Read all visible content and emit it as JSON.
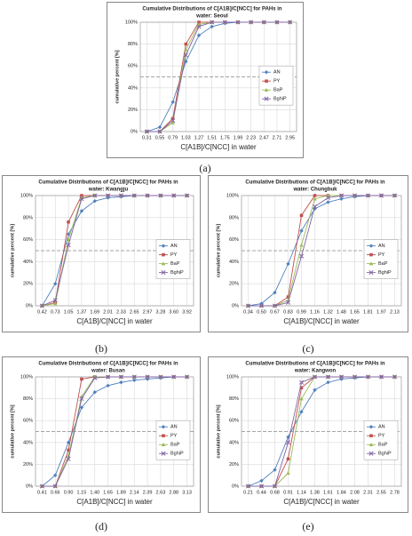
{
  "chart_data": [
    {
      "type": "line",
      "caption": "(a)",
      "title": [
        "Cumulative Distributions of C[A1B]/C[NCC] for PAHs in",
        "water: Seoul"
      ],
      "x_label": "C[A1B]/C[NCC] in water",
      "y_label": "cumulative percent [%]",
      "categories": [
        "0.31",
        "0.55",
        "0.79",
        "1.03",
        "1.27",
        "1.51",
        "1.75",
        "1.99",
        "2.23",
        "2.47",
        "2.71",
        "2.95"
      ],
      "series": [
        {
          "name": "AN",
          "color": "#4f81bd",
          "values": [
            0,
            4,
            27,
            64,
            88,
            96,
            99,
            100,
            100,
            100,
            100,
            100
          ]
        },
        {
          "name": "PY",
          "color": "#c0504d",
          "values": [
            0,
            0,
            12,
            80,
            100,
            100,
            100,
            100,
            100,
            100,
            100,
            100
          ]
        },
        {
          "name": "BaP",
          "color": "#9bbb59",
          "values": [
            0,
            0,
            8,
            75,
            98,
            100,
            100,
            100,
            100,
            100,
            100,
            100
          ]
        },
        {
          "name": "BghiP",
          "color": "#8064a2",
          "values": [
            0,
            0,
            10,
            70,
            96,
            100,
            100,
            100,
            100,
            100,
            100,
            100
          ]
        }
      ],
      "ylim": [
        0,
        100
      ],
      "yticks": [
        {
          "value": 0,
          "label": "0%"
        },
        {
          "value": 20,
          "label": "20%"
        },
        {
          "value": 40,
          "label": "40%"
        },
        {
          "value": 60,
          "label": "60%"
        },
        {
          "value": 80,
          "label": "80%"
        },
        {
          "value": 100,
          "label": "100%"
        }
      ],
      "hline": 50,
      "grid": true
    },
    {
      "type": "line",
      "caption": "(b)",
      "title": [
        "Cumulative Distributions of C[A1B]/C[NCC] for PAHs in",
        "water: Kwangju"
      ],
      "x_label": "C[A1B]/C[NCC] in water",
      "y_label": "cumulative percent [%]",
      "categories": [
        "0.42",
        "0.73",
        "1.05",
        "1.37",
        "1.69",
        "2.01",
        "2.33",
        "2.65",
        "2.97",
        "3.28",
        "3.60",
        "3.92"
      ],
      "series": [
        {
          "name": "AN",
          "color": "#4f81bd",
          "values": [
            0,
            20,
            65,
            86,
            95,
            98,
            99,
            100,
            100,
            100,
            100,
            100
          ]
        },
        {
          "name": "PY",
          "color": "#c0504d",
          "values": [
            0,
            3,
            76,
            100,
            100,
            100,
            100,
            100,
            100,
            100,
            100,
            100
          ]
        },
        {
          "name": "BaP",
          "color": "#9bbb59",
          "values": [
            0,
            2,
            60,
            98,
            100,
            100,
            100,
            100,
            100,
            100,
            100,
            100
          ]
        },
        {
          "name": "BghiP",
          "color": "#8064a2",
          "values": [
            0,
            5,
            55,
            97,
            100,
            100,
            100,
            100,
            100,
            100,
            100,
            100
          ]
        }
      ],
      "ylim": [
        0,
        100
      ],
      "yticks": [
        {
          "value": 0,
          "label": "0%"
        },
        {
          "value": 20,
          "label": "20%"
        },
        {
          "value": 40,
          "label": "40%"
        },
        {
          "value": 60,
          "label": "60%"
        },
        {
          "value": 80,
          "label": "80%"
        },
        {
          "value": 100,
          "label": "100%"
        }
      ],
      "hline": 50,
      "grid": true
    },
    {
      "type": "line",
      "caption": "(c)",
      "title": [
        "Cumulative Distributions of C[A1B]/C[NCC] for PAHs in",
        "water: Chungbuk"
      ],
      "x_label": "C[A1B]/C[NCC] in water",
      "y_label": "cumulative percent [%]",
      "categories": [
        "0.34",
        "0.50",
        "0.67",
        "0.83",
        "0.99",
        "1.16",
        "1.32",
        "1.48",
        "1.65",
        "1.81",
        "1.97",
        "2.13"
      ],
      "series": [
        {
          "name": "AN",
          "color": "#4f81bd",
          "values": [
            0,
            2,
            12,
            38,
            68,
            88,
            94,
            97,
            99,
            100,
            100,
            100
          ]
        },
        {
          "name": "PY",
          "color": "#c0504d",
          "values": [
            0,
            0,
            0,
            8,
            82,
            100,
            100,
            100,
            100,
            100,
            100,
            100
          ]
        },
        {
          "name": "BaP",
          "color": "#9bbb59",
          "values": [
            0,
            0,
            0,
            5,
            55,
            97,
            100,
            100,
            100,
            100,
            100,
            100
          ]
        },
        {
          "name": "BghiP",
          "color": "#8064a2",
          "values": [
            0,
            0,
            0,
            3,
            45,
            90,
            98,
            100,
            100,
            100,
            100,
            100
          ]
        }
      ],
      "ylim": [
        0,
        100
      ],
      "yticks": [
        {
          "value": 0,
          "label": "0%"
        },
        {
          "value": 20,
          "label": "20%"
        },
        {
          "value": 40,
          "label": "40%"
        },
        {
          "value": 60,
          "label": "60%"
        },
        {
          "value": 80,
          "label": "80%"
        },
        {
          "value": 100,
          "label": "100%"
        }
      ],
      "hline": 50,
      "grid": true
    },
    {
      "type": "line",
      "caption": "(d)",
      "title": [
        "Cumulative Distributions of C[A1B]/C[NCC] for PAHs in",
        "water: Busan"
      ],
      "x_label": "C[A1B]/C[NCC] in water",
      "y_label": "cumulative percent [%]",
      "categories": [
        "0.41",
        "0.66",
        "0.90",
        "1.15",
        "1.40",
        "1.65",
        "1.89",
        "2.14",
        "2.39",
        "2.63",
        "2.88",
        "3.13"
      ],
      "series": [
        {
          "name": "AN",
          "color": "#4f81bd",
          "values": [
            0,
            10,
            40,
            72,
            86,
            92,
            95,
            97,
            98,
            99,
            100,
            100
          ]
        },
        {
          "name": "PY",
          "color": "#c0504d",
          "values": [
            0,
            0,
            33,
            98,
            100,
            100,
            100,
            100,
            100,
            100,
            100,
            100
          ]
        },
        {
          "name": "BaP",
          "color": "#9bbb59",
          "values": [
            0,
            0,
            28,
            82,
            100,
            100,
            100,
            100,
            100,
            100,
            100,
            100
          ]
        },
        {
          "name": "BghiP",
          "color": "#8064a2",
          "values": [
            0,
            0,
            25,
            80,
            99,
            100,
            100,
            100,
            100,
            100,
            100,
            100
          ]
        }
      ],
      "ylim": [
        0,
        100
      ],
      "yticks": [
        {
          "value": 0,
          "label": "0%"
        },
        {
          "value": 20,
          "label": "20%"
        },
        {
          "value": 40,
          "label": "40%"
        },
        {
          "value": 60,
          "label": "60%"
        },
        {
          "value": 80,
          "label": "80%"
        },
        {
          "value": 100,
          "label": "100%"
        }
      ],
      "hline": 50,
      "grid": true
    },
    {
      "type": "line",
      "caption": "(e)",
      "title": [
        "Cumulative Distributions of C[A1B]/C[NCC] for PAHs in",
        "water: Kangwon"
      ],
      "x_label": "C[A1B]/C[NCC] in water",
      "y_label": "cumulative percent [%]",
      "categories": [
        "0.21",
        "0.44",
        "0.68",
        "0.91",
        "1.14",
        "1.38",
        "1.61",
        "1.84",
        "2.08",
        "2.31",
        "2.55",
        "2.78"
      ],
      "series": [
        {
          "name": "AN",
          "color": "#4f81bd",
          "values": [
            0,
            5,
            15,
            45,
            68,
            88,
            95,
            98,
            99,
            100,
            100,
            100
          ]
        },
        {
          "name": "PY",
          "color": "#c0504d",
          "values": [
            0,
            0,
            0,
            25,
            90,
            100,
            100,
            100,
            100,
            100,
            100,
            100
          ]
        },
        {
          "name": "BaP",
          "color": "#9bbb59",
          "values": [
            0,
            0,
            0,
            12,
            80,
            100,
            100,
            100,
            100,
            100,
            100,
            100
          ]
        },
        {
          "name": "BghiP",
          "color": "#8064a2",
          "values": [
            0,
            0,
            0,
            40,
            95,
            100,
            100,
            100,
            100,
            100,
            100,
            100
          ]
        }
      ],
      "ylim": [
        0,
        100
      ],
      "yticks": [
        {
          "value": 0,
          "label": "0%"
        },
        {
          "value": 20,
          "label": "20%"
        },
        {
          "value": 40,
          "label": "40%"
        },
        {
          "value": 60,
          "label": "60%"
        },
        {
          "value": 80,
          "label": "80%"
        },
        {
          "value": 100,
          "label": "100%"
        }
      ],
      "hline": 50,
      "grid": true
    }
  ]
}
